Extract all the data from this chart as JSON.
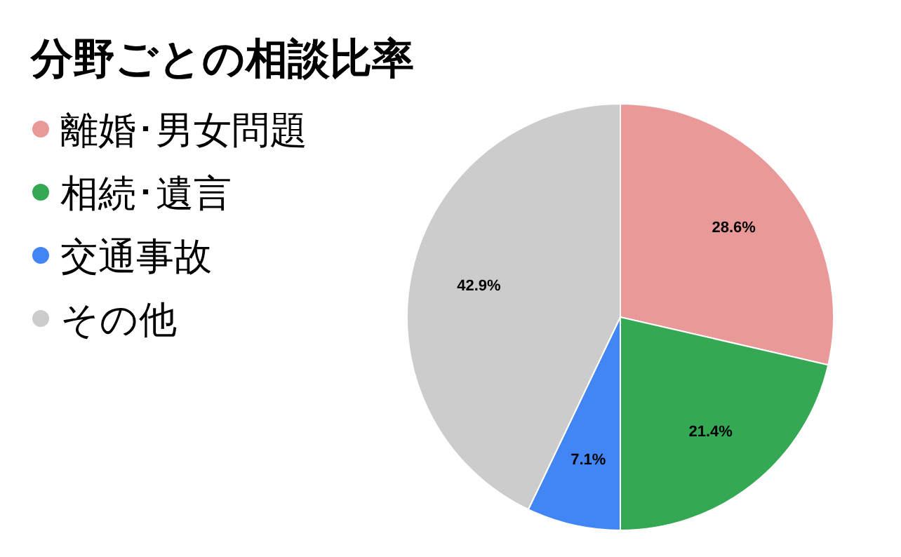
{
  "chart_data": {
    "type": "pie",
    "title": "分野ごとの相談比率",
    "categories": [
      "離婚･男女問題",
      "相続･遺言",
      "交通事故",
      "その他"
    ],
    "values": [
      28.6,
      21.4,
      7.1,
      42.9
    ],
    "colors": [
      "#ea9999",
      "#34a853",
      "#4285f4",
      "#cccccc"
    ],
    "value_labels": [
      "28.6%",
      "21.4%",
      "7.1%",
      "42.9%"
    ],
    "legend": "left"
  }
}
